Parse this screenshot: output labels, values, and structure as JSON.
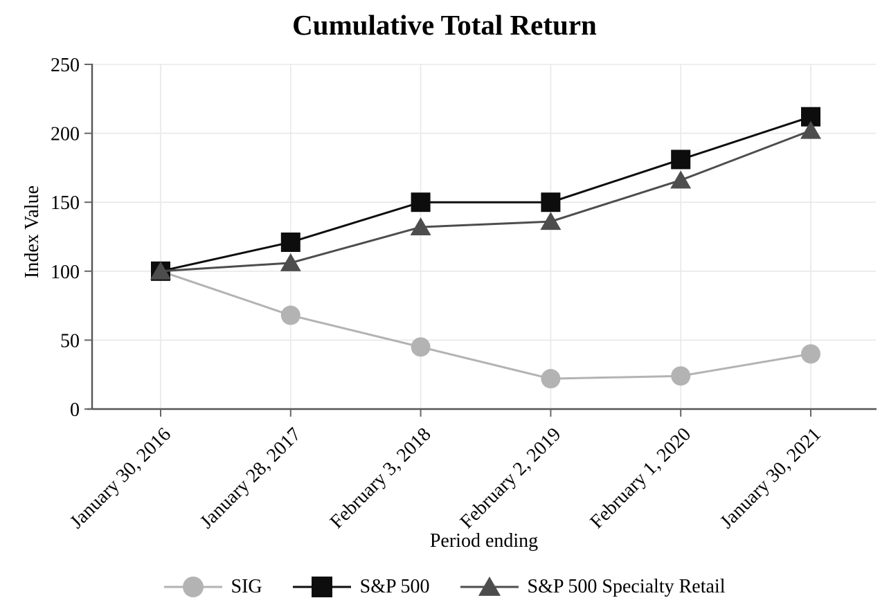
{
  "chart_data": {
    "type": "line",
    "title": "Cumulative Total Return",
    "xlabel": "Period ending",
    "ylabel": "Index Value",
    "categories": [
      "January 30, 2016",
      "January 28, 2017",
      "February 3, 2018",
      "February 2, 2019",
      "February 1, 2020",
      "January 30, 2021"
    ],
    "y_ticks": [
      0,
      50,
      100,
      150,
      200,
      250
    ],
    "ylim": [
      0,
      250
    ],
    "grid": true,
    "legend_position": "bottom",
    "series": [
      {
        "name": "SIG",
        "marker": "circle",
        "color": "#b3b3b3",
        "values": [
          100,
          68,
          45,
          22,
          24,
          40
        ]
      },
      {
        "name": "S&P 500",
        "marker": "square",
        "color": "#0d0d0d",
        "values": [
          100,
          121,
          150,
          150,
          181,
          212
        ]
      },
      {
        "name": "S&P 500 Specialty Retail",
        "marker": "triangle",
        "color": "#4d4d4d",
        "values": [
          100,
          106,
          132,
          136,
          166,
          202
        ]
      }
    ],
    "colors": {
      "gridline": "#e8e8e8",
      "axis": "#555555",
      "tick": "#666666",
      "text": "#000000",
      "background": "#ffffff"
    }
  }
}
